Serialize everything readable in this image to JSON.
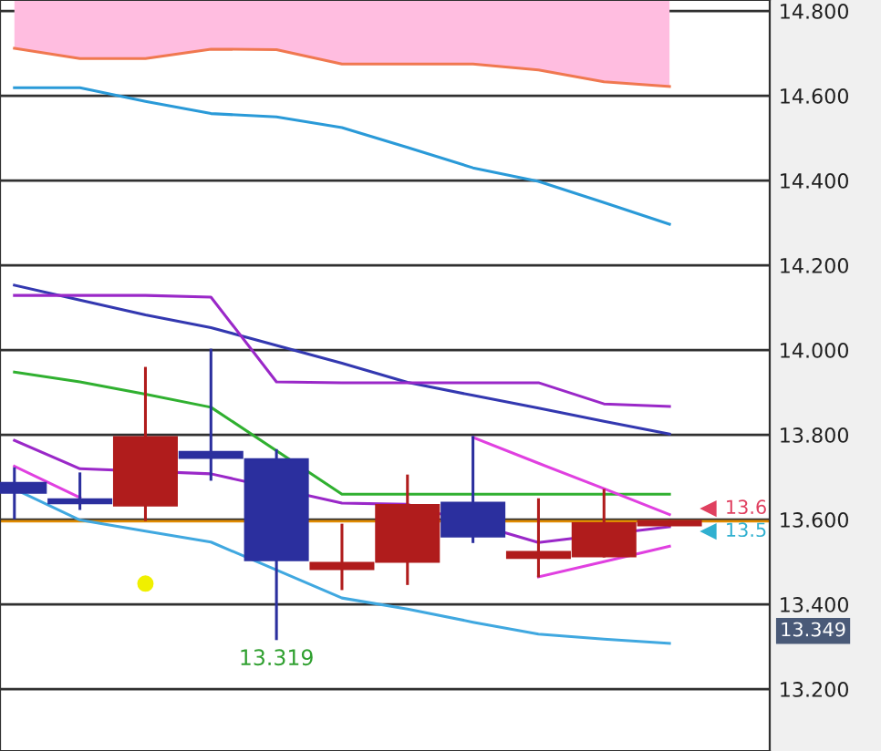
{
  "chart_data": {
    "type": "candlestick",
    "categories": [
      null,
      null,
      null,
      null,
      null,
      null,
      null,
      null,
      null,
      null,
      null
    ],
    "ohlc": [
      [
        13.686,
        13.72,
        13.604,
        13.664
      ],
      [
        13.647,
        13.708,
        13.626,
        13.639
      ],
      [
        13.634,
        13.957,
        13.6,
        13.794
      ],
      [
        13.759,
        14.0,
        13.695,
        13.746
      ],
      [
        13.742,
        13.763,
        13.319,
        13.505
      ],
      [
        13.484,
        13.587,
        13.437,
        13.497
      ],
      [
        13.501,
        13.703,
        13.449,
        13.634
      ],
      [
        13.639,
        13.794,
        13.548,
        13.561
      ],
      [
        13.51,
        13.647,
        13.467,
        13.523
      ],
      [
        13.514,
        13.669,
        13.514,
        13.591
      ],
      [
        13.587,
        13.596,
        13.587,
        13.596
      ]
    ],
    "colors": [
      "#2b2f9e",
      "#2b2f9e",
      "#b01c1c",
      "#2b2f9e",
      "#2b2f9e",
      "#b01c1c",
      "#b01c1c",
      "#2b2f9e",
      "#b01c1c",
      "#b01c1c",
      "#b01c1c"
    ],
    "series": [
      {
        "type": "line",
        "color": "#f07850",
        "values": [
          14.712,
          14.688,
          14.688,
          14.71,
          14.709,
          14.675,
          14.675,
          14.675,
          14.661,
          14.633,
          14.622
        ],
        "lower": [
          14.712,
          14.688,
          14.688,
          14.71,
          14.709,
          14.675,
          14.675,
          14.675,
          14.661,
          14.633,
          14.622
        ],
        "upper": [
          14.826,
          14.826,
          14.826,
          14.826,
          14.826,
          14.826,
          14.826,
          14.826,
          14.826,
          14.826,
          14.826
        ]
      },
      {
        "type": "line",
        "color": "#2a9ad8",
        "values": [
          14.619,
          14.619,
          14.587,
          14.558,
          14.55,
          14.525,
          14.478,
          14.43,
          14.398,
          14.348,
          14.297
        ]
      },
      {
        "type": "line",
        "color": "#3338b0",
        "values": [
          14.153,
          14.118,
          14.083,
          14.053,
          14.011,
          13.969,
          13.924,
          13.893,
          13.863,
          13.832,
          13.802
        ]
      },
      {
        "type": "line",
        "color": "#9a28c8",
        "values": [
          14.129,
          14.129,
          14.129,
          14.125,
          13.925,
          13.923,
          13.923,
          13.923,
          13.923,
          13.873,
          13.867
        ]
      },
      {
        "type": "line",
        "color": "#30b030",
        "values": [
          13.948,
          13.925,
          13.896,
          13.865,
          null,
          13.66,
          13.66,
          13.66,
          13.66,
          13.66,
          13.66
        ]
      },
      {
        "type": "line",
        "color": "#9a28c8",
        "values": [
          13.787,
          13.72,
          null,
          13.708,
          null,
          13.639,
          13.636,
          null,
          13.546,
          null,
          13.583
        ]
      },
      {
        "type": "line",
        "color": "#e040e0",
        "values": [
          13.726,
          13.652,
          null,
          null,
          null,
          null,
          null,
          null,
          null,
          null,
          null
        ]
      },
      {
        "type": "line",
        "color": "#e040e0",
        "values": [
          null,
          null,
          null,
          null,
          null,
          null,
          null,
          13.794,
          13.733,
          13.673,
          13.612
        ]
      },
      {
        "type": "line",
        "color": "#e040e0",
        "values": [
          null,
          null,
          null,
          null,
          null,
          null,
          null,
          null,
          13.465,
          13.501,
          13.537
        ]
      },
      {
        "type": "line",
        "color": "#40a8e0",
        "values": [
          13.672,
          13.599,
          13.573,
          13.547,
          13.481,
          13.415,
          13.389,
          13.358,
          13.33,
          13.318,
          13.308
        ]
      },
      {
        "type": "scatter",
        "color": "#f0f000",
        "marker": "circle",
        "values": [
          null,
          null,
          13.449,
          null,
          null,
          null,
          null,
          null,
          null,
          null,
          null
        ]
      }
    ],
    "ref_lines": [
      {
        "axis": "y",
        "value": 13.596,
        "color": "#e08a00"
      }
    ],
    "annotations": [
      {
        "text": "13.319",
        "y": 13.319
      },
      "13.6",
      "13.5",
      "13.349"
    ],
    "ylim": [
      13.054,
      14.826
    ],
    "yticks": [
      {
        "value": 13.2,
        "label": "13.200"
      },
      {
        "value": 13.4,
        "label": "13.400"
      },
      {
        "value": 13.6,
        "label": "13.600"
      },
      {
        "value": 13.8,
        "label": "13.800"
      },
      {
        "value": 14.0,
        "label": "14.000"
      },
      {
        "value": 14.2,
        "label": "14.200"
      },
      {
        "value": 14.4,
        "label": "14.400"
      },
      {
        "value": 14.6,
        "label": "14.600"
      },
      {
        "value": 14.8,
        "label": "14.800"
      }
    ],
    "grid": "y",
    "tick_labels": "y"
  }
}
